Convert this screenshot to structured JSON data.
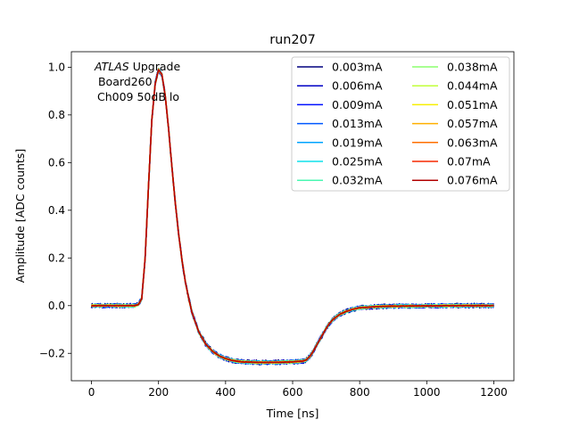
{
  "chart_data": {
    "type": "line",
    "title": "run207",
    "xlabel": "Time [ns]",
    "ylabel": "Amplitude [ADC counts]",
    "xlim": [
      -60,
      1260
    ],
    "ylim": [
      -0.315,
      1.065
    ],
    "xticks": [
      0,
      200,
      400,
      600,
      800,
      1000,
      1200
    ],
    "xtick_labels": [
      "0",
      "200",
      "400",
      "600",
      "800",
      "1000",
      "1200"
    ],
    "yticks": [
      -0.2,
      0.0,
      0.2,
      0.4,
      0.6,
      0.8,
      1.0
    ],
    "ytick_labels": [
      "−0.2",
      "0.0",
      "0.2",
      "0.4",
      "0.6",
      "0.8",
      "1.0"
    ],
    "grid": false,
    "legend_position": "top-right",
    "legend_columns": 2,
    "annotation": {
      "experiment": "ATLAS",
      "experiment_suffix": " Upgrade",
      "line2": " Board260",
      "line3": "Ch009 50dB lo"
    },
    "pulse_shape": {
      "x": [
        0,
        130,
        140,
        150,
        160,
        170,
        180,
        190,
        200,
        210,
        220,
        230,
        240,
        250,
        260,
        270,
        280,
        290,
        300,
        320,
        340,
        360,
        380,
        400,
        420,
        450,
        500,
        550,
        600,
        630,
        640,
        650,
        660,
        670,
        680,
        690,
        700,
        710,
        720,
        740,
        760,
        780,
        800,
        850,
        900,
        1000,
        1100,
        1200
      ],
      "y": [
        0.0,
        0.0,
        0.005,
        0.03,
        0.2,
        0.5,
        0.78,
        0.93,
        0.99,
        0.97,
        0.88,
        0.74,
        0.58,
        0.43,
        0.3,
        0.19,
        0.1,
        0.03,
        -0.03,
        -0.11,
        -0.16,
        -0.19,
        -0.21,
        -0.222,
        -0.23,
        -0.236,
        -0.238,
        -0.238,
        -0.236,
        -0.233,
        -0.228,
        -0.215,
        -0.195,
        -0.17,
        -0.145,
        -0.12,
        -0.095,
        -0.075,
        -0.058,
        -0.037,
        -0.024,
        -0.015,
        -0.009,
        -0.004,
        -0.002,
        -0.001,
        0.0,
        0.0
      ]
    },
    "series": [
      {
        "name": "0.003mA",
        "color": "#00007f"
      },
      {
        "name": "0.006mA",
        "color": "#0000c4"
      },
      {
        "name": "0.009mA",
        "color": "#0010ff"
      },
      {
        "name": "0.013mA",
        "color": "#0058ff"
      },
      {
        "name": "0.019mA",
        "color": "#00a4ff"
      },
      {
        "name": "0.025mA",
        "color": "#0ee0eb"
      },
      {
        "name": "0.032mA",
        "color": "#49f7b2"
      },
      {
        "name": "0.038mA",
        "color": "#8cff6e"
      },
      {
        "name": "0.044mA",
        "color": "#c1ff3a"
      },
      {
        "name": "0.051mA",
        "color": "#f7ef00"
      },
      {
        "name": "0.057mA",
        "color": "#ffb000"
      },
      {
        "name": "0.063mA",
        "color": "#ff6f00"
      },
      {
        "name": "0.07mA",
        "color": "#f52900"
      },
      {
        "name": "0.076mA",
        "color": "#b20000"
      }
    ]
  }
}
